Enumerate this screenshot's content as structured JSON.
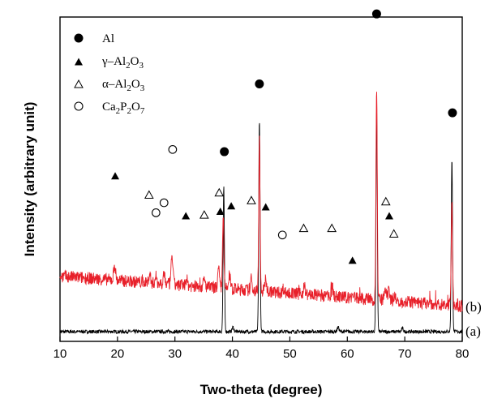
{
  "chart_data": {
    "type": "line",
    "xlabel": "Two-theta (degree)",
    "ylabel": "Intensity (arbitrary unit)",
    "xlim": [
      10,
      80
    ],
    "x_ticks": [
      "10",
      "20",
      "30",
      "40",
      "50",
      "60",
      "70",
      "80"
    ],
    "y_ticks": "none",
    "grid": false,
    "legend_position": "top-left",
    "legend": [
      {
        "marker": "filled-circle",
        "label": "Al"
      },
      {
        "marker": "filled-triangle",
        "label": "γ–Al",
        "sub1": "2",
        "mid": "O",
        "sub2": "3"
      },
      {
        "marker": "open-triangle",
        "label": "α–Al",
        "sub1": "2",
        "mid": "O",
        "sub2": "3"
      },
      {
        "marker": "open-circle",
        "label": "Ca",
        "sub1": "2",
        "mid": "P",
        "sub2": "2",
        "mid2": "O",
        "sub3": "7"
      }
    ],
    "series": [
      {
        "label": "(a)",
        "color": "#000000",
        "baseline": 0.0,
        "noise": 0.008,
        "peaks": [
          [
            38.5,
            0.65
          ],
          [
            44.7,
            0.95
          ],
          [
            65.1,
            1.0
          ],
          [
            78.2,
            0.78
          ],
          [
            40.1,
            0.02
          ],
          [
            58.4,
            0.02
          ],
          [
            69.6,
            0.015
          ]
        ]
      },
      {
        "label": "(b)",
        "color": "#e8202a",
        "baseline_start": 0.25,
        "baseline_end": 0.115,
        "noise": 0.028,
        "peaks": [
          [
            38.4,
            0.34
          ],
          [
            44.7,
            0.69
          ],
          [
            65.1,
            0.96
          ],
          [
            78.2,
            0.45
          ],
          [
            19.5,
            0.07
          ],
          [
            25.6,
            0.04
          ],
          [
            26.7,
            0.03
          ],
          [
            28.1,
            0.05
          ],
          [
            29.5,
            0.13
          ],
          [
            32.0,
            0.03
          ],
          [
            35.1,
            0.03
          ],
          [
            37.6,
            0.08
          ],
          [
            39.5,
            0.06
          ],
          [
            43.3,
            0.05
          ],
          [
            45.8,
            0.05
          ],
          [
            48.9,
            0.02
          ],
          [
            52.5,
            0.04
          ],
          [
            57.4,
            0.04
          ],
          [
            61.0,
            0.02
          ],
          [
            66.6,
            0.05
          ],
          [
            67.2,
            0.04
          ],
          [
            68.2,
            0.03
          ]
        ]
      }
    ],
    "markers": [
      {
        "type": "filled-circle",
        "x": 38.6,
        "y": 0.81
      },
      {
        "type": "filled-circle",
        "x": 44.7,
        "y": 1.115
      },
      {
        "type": "filled-circle",
        "x": 65.1,
        "y": 1.43
      },
      {
        "type": "filled-circle",
        "x": 78.3,
        "y": 0.985
      },
      {
        "type": "filled-triangle",
        "x": 19.6,
        "y": 0.7
      },
      {
        "type": "filled-triangle",
        "x": 31.9,
        "y": 0.52
      },
      {
        "type": "filled-triangle",
        "x": 37.9,
        "y": 0.54
      },
      {
        "type": "filled-triangle",
        "x": 39.8,
        "y": 0.565
      },
      {
        "type": "filled-triangle",
        "x": 45.8,
        "y": 0.56
      },
      {
        "type": "filled-triangle",
        "x": 60.9,
        "y": 0.32
      },
      {
        "type": "filled-triangle",
        "x": 67.3,
        "y": 0.52
      },
      {
        "type": "open-triangle",
        "x": 25.5,
        "y": 0.615
      },
      {
        "type": "open-triangle",
        "x": 35.1,
        "y": 0.525
      },
      {
        "type": "open-triangle",
        "x": 37.7,
        "y": 0.625
      },
      {
        "type": "open-triangle",
        "x": 43.3,
        "y": 0.59
      },
      {
        "type": "open-triangle",
        "x": 52.4,
        "y": 0.465
      },
      {
        "type": "open-triangle",
        "x": 57.3,
        "y": 0.465
      },
      {
        "type": "open-triangle",
        "x": 66.7,
        "y": 0.585
      },
      {
        "type": "open-triangle",
        "x": 68.1,
        "y": 0.44
      },
      {
        "type": "open-circle",
        "x": 26.7,
        "y": 0.535
      },
      {
        "type": "open-circle",
        "x": 28.1,
        "y": 0.58
      },
      {
        "type": "open-circle",
        "x": 29.6,
        "y": 0.82
      },
      {
        "type": "open-circle",
        "x": 48.7,
        "y": 0.435
      }
    ]
  }
}
